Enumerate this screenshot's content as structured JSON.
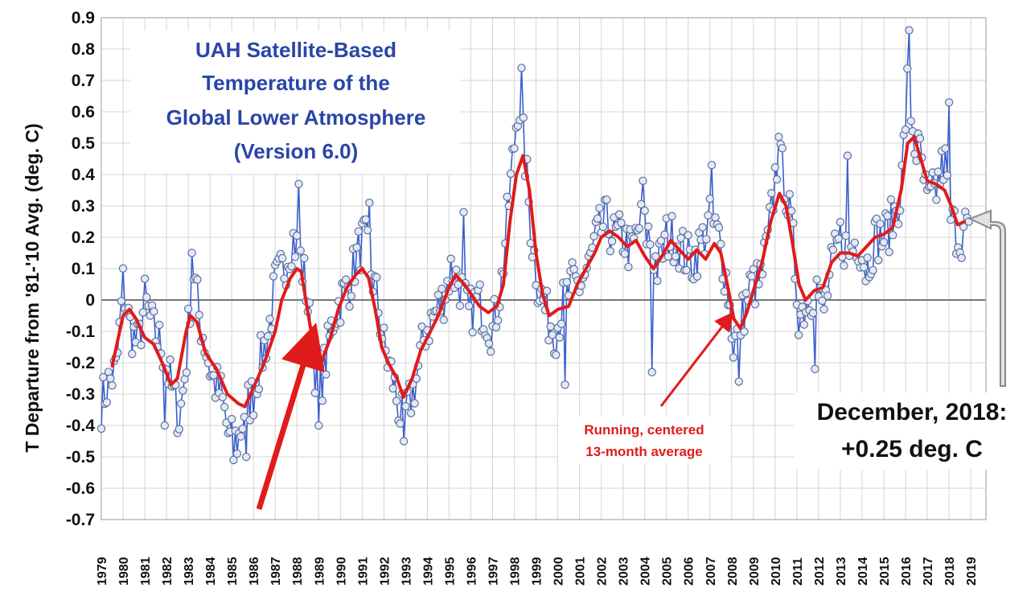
{
  "chart_data": {
    "type": "line",
    "title_lines": [
      "UAH Satellite-Based",
      "Temperature of the",
      "Global Lower Atmosphere",
      "(Version 6.0)"
    ],
    "ylabel": "T Departure from '81-'10 Avg. (deg. C)",
    "xlabel": "",
    "ylim": [
      -0.7,
      0.9
    ],
    "ytick_labels": [
      "0.9",
      "0.8",
      "0.7",
      "0.6",
      "0.5",
      "0.4",
      "0.3",
      "0.2",
      "0.1",
      "0",
      "-0.1",
      "-0.2",
      "-0.3",
      "-0.4",
      "-0.5",
      "-0.6",
      "-0.7"
    ],
    "xtick_labels": [
      "1979",
      "1980",
      "1981",
      "1982",
      "1983",
      "1984",
      "1985",
      "1986",
      "1987",
      "1988",
      "1989",
      "1990",
      "1991",
      "1992",
      "1993",
      "1994",
      "1995",
      "1996",
      "1997",
      "1998",
      "1999",
      "2000",
      "2001",
      "2002",
      "2003",
      "2004",
      "2005",
      "2006",
      "2007",
      "2008",
      "2009",
      "2010",
      "2011",
      "2012",
      "2013",
      "2014",
      "2015",
      "2016",
      "2017",
      "2018",
      "2019"
    ],
    "grid": true,
    "series": [
      {
        "kind": "monthly",
        "color": "#3a5fcd",
        "marker": "open-circle",
        "anchors": [
          [
            1979.0,
            -0.33
          ],
          [
            1979.3,
            -0.27
          ],
          [
            1979.7,
            -0.22
          ],
          [
            1980.0,
            0.05
          ],
          [
            1980.3,
            -0.08
          ],
          [
            1980.7,
            -0.15
          ],
          [
            1981.0,
            0.0
          ],
          [
            1981.4,
            -0.1
          ],
          [
            1981.8,
            -0.15
          ],
          [
            1982.3,
            -0.3
          ],
          [
            1982.6,
            -0.38
          ],
          [
            1982.9,
            -0.2
          ],
          [
            1983.2,
            0.12
          ],
          [
            1983.5,
            -0.05
          ],
          [
            1983.8,
            -0.15
          ],
          [
            1984.1,
            -0.25
          ],
          [
            1984.5,
            -0.3
          ],
          [
            1984.9,
            -0.45
          ],
          [
            1985.3,
            -0.45
          ],
          [
            1985.6,
            -0.35
          ],
          [
            1986.0,
            -0.3
          ],
          [
            1986.3,
            -0.2
          ],
          [
            1986.7,
            -0.1
          ],
          [
            1987.0,
            0.05
          ],
          [
            1987.4,
            0.1
          ],
          [
            1987.8,
            0.2
          ],
          [
            1988.1,
            0.15
          ],
          [
            1988.4,
            0.05
          ],
          [
            1988.7,
            -0.15
          ],
          [
            1989.0,
            -0.3
          ],
          [
            1989.3,
            -0.2
          ],
          [
            1989.7,
            -0.05
          ],
          [
            1990.0,
            0.0
          ],
          [
            1990.4,
            0.05
          ],
          [
            1990.8,
            0.15
          ],
          [
            1991.1,
            0.2
          ],
          [
            1991.4,
            0.1
          ],
          [
            1991.7,
            0.0
          ],
          [
            1992.0,
            -0.15
          ],
          [
            1992.4,
            -0.25
          ],
          [
            1992.8,
            -0.38
          ],
          [
            1993.1,
            -0.35
          ],
          [
            1993.5,
            -0.25
          ],
          [
            1993.9,
            -0.1
          ],
          [
            1994.3,
            -0.05
          ],
          [
            1994.7,
            0.0
          ],
          [
            1995.1,
            0.1
          ],
          [
            1995.5,
            0.05
          ],
          [
            1995.9,
            -0.05
          ],
          [
            1996.3,
            0.0
          ],
          [
            1996.7,
            -0.05
          ],
          [
            1997.0,
            -0.1
          ],
          [
            1997.4,
            0.05
          ],
          [
            1997.8,
            0.35
          ],
          [
            1998.2,
            0.65
          ],
          [
            1998.5,
            0.45
          ],
          [
            1998.8,
            0.2
          ],
          [
            1999.1,
            0.05
          ],
          [
            1999.5,
            -0.05
          ],
          [
            1999.9,
            -0.1
          ],
          [
            2000.3,
            0.0
          ],
          [
            2000.7,
            0.05
          ],
          [
            2001.0,
            0.05
          ],
          [
            2001.4,
            0.1
          ],
          [
            2001.8,
            0.2
          ],
          [
            2002.2,
            0.25
          ],
          [
            2002.6,
            0.2
          ],
          [
            2003.0,
            0.2
          ],
          [
            2003.4,
            0.15
          ],
          [
            2003.8,
            0.25
          ],
          [
            2004.2,
            0.2
          ],
          [
            2004.6,
            0.1
          ],
          [
            2005.0,
            0.2
          ],
          [
            2005.4,
            0.2
          ],
          [
            2005.8,
            0.15
          ],
          [
            2006.2,
            0.12
          ],
          [
            2006.6,
            0.18
          ],
          [
            2007.0,
            0.25
          ],
          [
            2007.4,
            0.2
          ],
          [
            2007.8,
            0.05
          ],
          [
            2008.1,
            -0.15
          ],
          [
            2008.5,
            -0.05
          ],
          [
            2008.9,
            0.05
          ],
          [
            2009.3,
            0.05
          ],
          [
            2009.7,
            0.2
          ],
          [
            2010.1,
            0.45
          ],
          [
            2010.4,
            0.4
          ],
          [
            2010.8,
            0.2
          ],
          [
            2011.1,
            -0.05
          ],
          [
            2011.5,
            0.0
          ],
          [
            2011.9,
            0.05
          ],
          [
            2012.2,
            -0.05
          ],
          [
            2012.6,
            0.1
          ],
          [
            2013.0,
            0.2
          ],
          [
            2013.4,
            0.15
          ],
          [
            2013.8,
            0.2
          ],
          [
            2014.2,
            0.1
          ],
          [
            2014.6,
            0.2
          ],
          [
            2015.0,
            0.2
          ],
          [
            2015.4,
            0.25
          ],
          [
            2015.8,
            0.35
          ],
          [
            2016.1,
            0.7
          ],
          [
            2016.4,
            0.5
          ],
          [
            2016.7,
            0.45
          ],
          [
            2017.0,
            0.3
          ],
          [
            2017.4,
            0.35
          ],
          [
            2017.8,
            0.45
          ],
          [
            2018.1,
            0.25
          ],
          [
            2018.5,
            0.2
          ],
          [
            2018.9,
            0.25
          ]
        ],
        "spikes": [
          [
            1985.1,
            -0.51
          ],
          [
            1985.7,
            -0.5
          ],
          [
            1988.1,
            0.37
          ],
          [
            1989.0,
            -0.4
          ],
          [
            1991.3,
            0.31
          ],
          [
            1992.9,
            -0.45
          ],
          [
            1995.7,
            0.28
          ],
          [
            1998.3,
            0.74
          ],
          [
            2000.3,
            -0.27
          ],
          [
            2003.9,
            0.38
          ],
          [
            2004.3,
            -0.23
          ],
          [
            2007.1,
            0.43
          ],
          [
            2008.3,
            -0.26
          ],
          [
            2010.2,
            0.52
          ],
          [
            2011.8,
            -0.22
          ],
          [
            2013.3,
            0.46
          ],
          [
            2016.2,
            0.86
          ],
          [
            2018.0,
            0.63
          ],
          [
            1983.2,
            0.15
          ],
          [
            1981.9,
            -0.4
          ]
        ]
      },
      {
        "kind": "running-average",
        "color": "#e01b1b",
        "points": [
          [
            1979.5,
            -0.21
          ],
          [
            1980.0,
            -0.05
          ],
          [
            1980.3,
            -0.03
          ],
          [
            1980.6,
            -0.06
          ],
          [
            1981.0,
            -0.12
          ],
          [
            1981.4,
            -0.14
          ],
          [
            1981.8,
            -0.2
          ],
          [
            1982.2,
            -0.27
          ],
          [
            1982.5,
            -0.25
          ],
          [
            1982.9,
            -0.1
          ],
          [
            1983.1,
            -0.05
          ],
          [
            1983.4,
            -0.07
          ],
          [
            1983.8,
            -0.17
          ],
          [
            1984.3,
            -0.22
          ],
          [
            1984.8,
            -0.3
          ],
          [
            1985.3,
            -0.33
          ],
          [
            1985.6,
            -0.34
          ],
          [
            1986.0,
            -0.28
          ],
          [
            1986.5,
            -0.2
          ],
          [
            1987.0,
            -0.1
          ],
          [
            1987.3,
            0.0
          ],
          [
            1987.7,
            0.07
          ],
          [
            1988.0,
            0.1
          ],
          [
            1988.2,
            0.09
          ],
          [
            1988.5,
            -0.04
          ],
          [
            1988.8,
            -0.16
          ],
          [
            1989.1,
            -0.2
          ],
          [
            1989.5,
            -0.13
          ],
          [
            1989.9,
            -0.03
          ],
          [
            1990.3,
            0.04
          ],
          [
            1990.7,
            0.08
          ],
          [
            1991.0,
            0.1
          ],
          [
            1991.3,
            0.07
          ],
          [
            1991.6,
            -0.03
          ],
          [
            1991.9,
            -0.15
          ],
          [
            1992.2,
            -0.2
          ],
          [
            1992.6,
            -0.25
          ],
          [
            1992.9,
            -0.31
          ],
          [
            1993.3,
            -0.25
          ],
          [
            1993.7,
            -0.16
          ],
          [
            1994.0,
            -0.12
          ],
          [
            1994.5,
            -0.05
          ],
          [
            1995.0,
            0.04
          ],
          [
            1995.3,
            0.08
          ],
          [
            1995.7,
            0.05
          ],
          [
            1996.0,
            0.02
          ],
          [
            1996.4,
            -0.02
          ],
          [
            1996.8,
            -0.04
          ],
          [
            1997.2,
            -0.02
          ],
          [
            1997.5,
            0.05
          ],
          [
            1997.8,
            0.25
          ],
          [
            1998.1,
            0.4
          ],
          [
            1998.4,
            0.46
          ],
          [
            1998.7,
            0.35
          ],
          [
            1999.0,
            0.15
          ],
          [
            1999.3,
            0.02
          ],
          [
            1999.6,
            -0.05
          ],
          [
            2000.0,
            -0.03
          ],
          [
            2000.5,
            -0.02
          ],
          [
            2000.9,
            0.05
          ],
          [
            2001.3,
            0.1
          ],
          [
            2001.7,
            0.15
          ],
          [
            2002.0,
            0.2
          ],
          [
            2002.4,
            0.22
          ],
          [
            2002.8,
            0.2
          ],
          [
            2003.2,
            0.17
          ],
          [
            2003.6,
            0.19
          ],
          [
            2004.0,
            0.14
          ],
          [
            2004.4,
            0.1
          ],
          [
            2004.8,
            0.14
          ],
          [
            2005.2,
            0.19
          ],
          [
            2005.6,
            0.16
          ],
          [
            2006.0,
            0.13
          ],
          [
            2006.4,
            0.16
          ],
          [
            2006.8,
            0.13
          ],
          [
            2007.2,
            0.18
          ],
          [
            2007.5,
            0.15
          ],
          [
            2007.8,
            0.05
          ],
          [
            2008.1,
            -0.06
          ],
          [
            2008.4,
            -0.09
          ],
          [
            2008.7,
            -0.04
          ],
          [
            2009.0,
            0.03
          ],
          [
            2009.4,
            0.12
          ],
          [
            2009.8,
            0.25
          ],
          [
            2010.2,
            0.34
          ],
          [
            2010.5,
            0.3
          ],
          [
            2010.8,
            0.18
          ],
          [
            2011.1,
            0.05
          ],
          [
            2011.4,
            0.0
          ],
          [
            2011.8,
            0.03
          ],
          [
            2012.2,
            0.04
          ],
          [
            2012.6,
            0.12
          ],
          [
            2013.0,
            0.15
          ],
          [
            2013.4,
            0.15
          ],
          [
            2013.8,
            0.14
          ],
          [
            2014.2,
            0.17
          ],
          [
            2014.6,
            0.2
          ],
          [
            2015.0,
            0.21
          ],
          [
            2015.4,
            0.23
          ],
          [
            2015.8,
            0.35
          ],
          [
            2016.1,
            0.5
          ],
          [
            2016.4,
            0.52
          ],
          [
            2016.7,
            0.45
          ],
          [
            2017.0,
            0.38
          ],
          [
            2017.4,
            0.37
          ],
          [
            2017.8,
            0.35
          ],
          [
            2018.1,
            0.3
          ],
          [
            2018.4,
            0.24
          ],
          [
            2018.7,
            0.25
          ]
        ]
      }
    ],
    "annotations": {
      "avg_note_lines": [
        "Running, centered",
        "13-month average"
      ],
      "callout_lines": [
        "December, 2018:",
        "+0.25 deg. C"
      ]
    }
  }
}
